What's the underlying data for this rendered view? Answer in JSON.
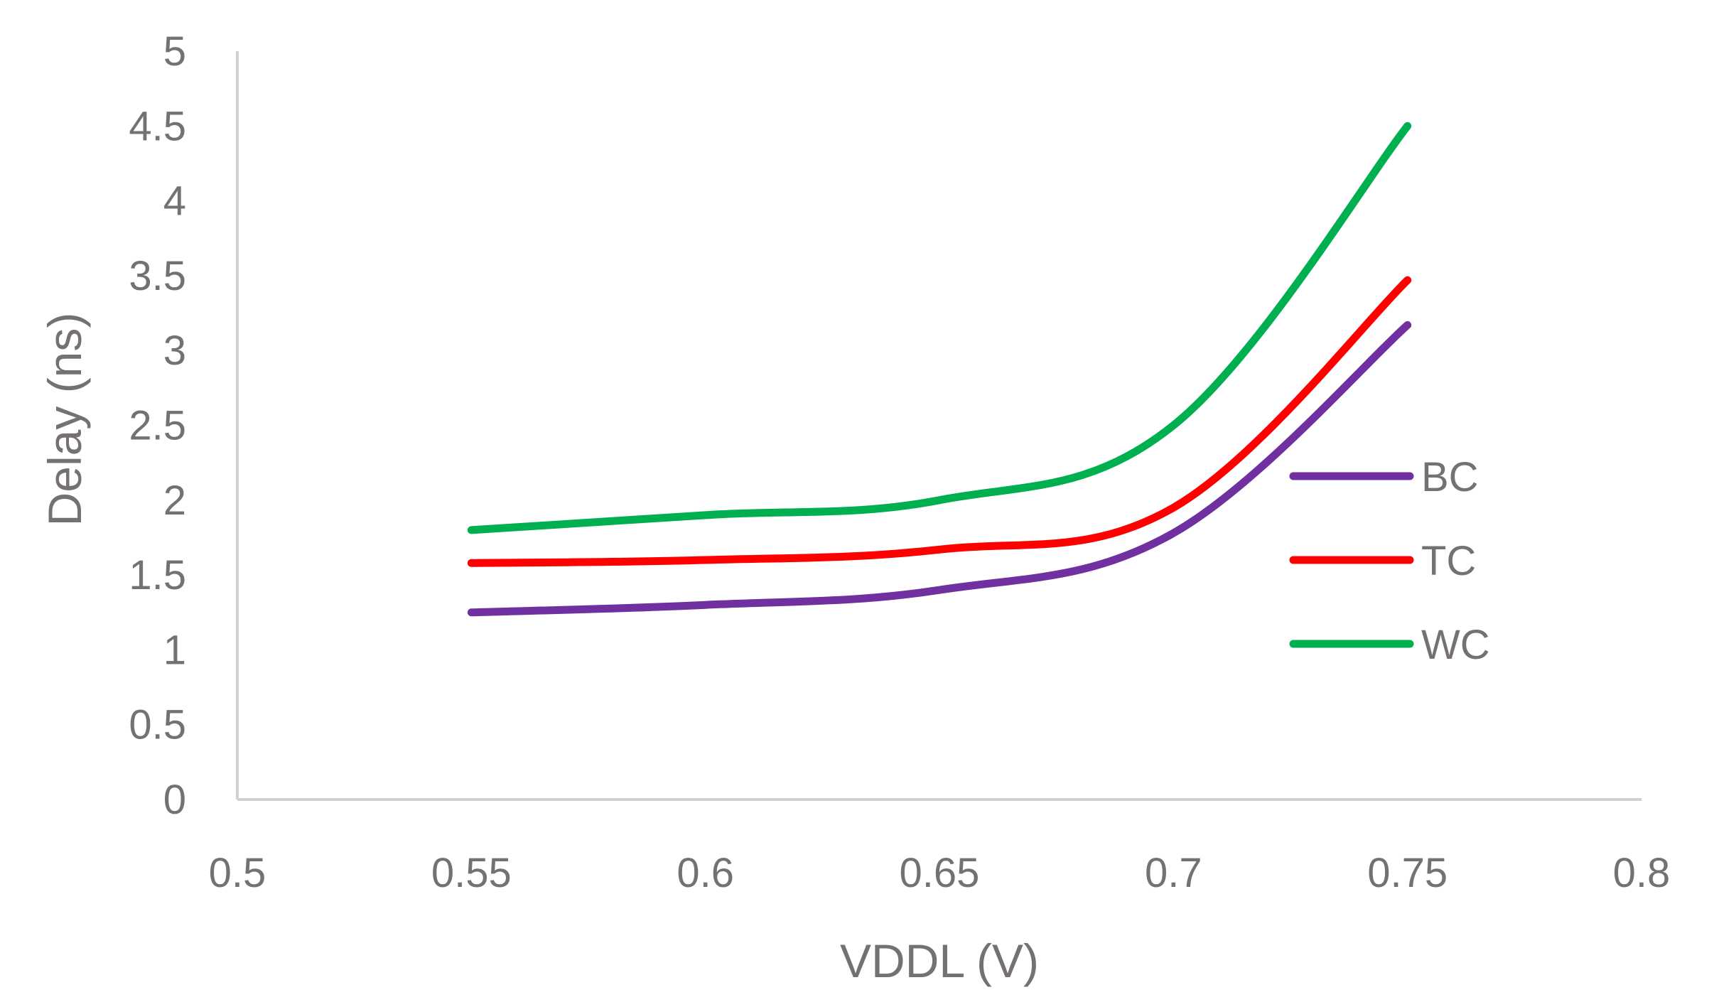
{
  "chart_data": {
    "type": "line",
    "title": "",
    "xlabel": "VDDL (V)",
    "ylabel": "Delay (ns)",
    "xlim": [
      0.5,
      0.8
    ],
    "ylim": [
      0,
      5
    ],
    "xticks": [
      0.5,
      0.55,
      0.6,
      0.65,
      0.7,
      0.75,
      0.8
    ],
    "xtick_labels": [
      "0.5",
      "0.55",
      "0.6",
      "0.65",
      "0.7",
      "0.75",
      "0.8"
    ],
    "yticks": [
      0,
      0.5,
      1,
      1.5,
      2,
      2.5,
      3,
      3.5,
      4,
      4.5,
      5
    ],
    "ytick_labels": [
      "0",
      "0.5",
      "1",
      "1.5",
      "2",
      "2.5",
      "3",
      "3.5",
      "4",
      "4.5",
      "5"
    ],
    "grid": false,
    "legend_position": "right",
    "x": [
      0.55,
      0.6,
      0.65,
      0.7,
      0.75
    ],
    "series": [
      {
        "name": "BC",
        "color": "#7030a0",
        "values": [
          1.25,
          1.3,
          1.4,
          1.78,
          3.17
        ]
      },
      {
        "name": "TC",
        "color": "#ff0000",
        "values": [
          1.58,
          1.6,
          1.67,
          1.95,
          3.47
        ]
      },
      {
        "name": "WC",
        "color": "#00b050",
        "values": [
          1.8,
          1.9,
          2.0,
          2.5,
          4.5
        ]
      }
    ]
  }
}
